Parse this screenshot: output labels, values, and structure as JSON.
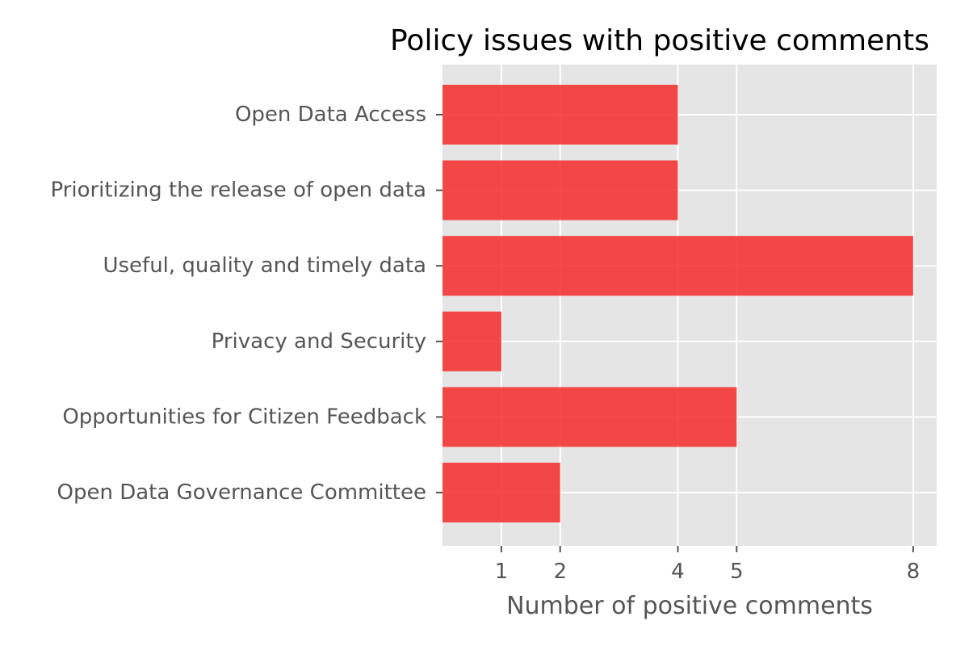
{
  "chart_data": {
    "type": "bar",
    "orientation": "horizontal",
    "title": "Policy issues with positive comments",
    "xlabel": "Number of positive comments",
    "ylabel": "",
    "categories": [
      "Open Data Access",
      "Prioritizing the release of open data",
      "Useful, quality and timely data",
      "Privacy and Security",
      "Opportunities for Citizen Feedback",
      "Open Data Governance Committee"
    ],
    "values": [
      4,
      4,
      8,
      1,
      5,
      2
    ],
    "xticks": [
      1,
      2,
      4,
      5,
      8
    ],
    "xlim": [
      0,
      8.4
    ],
    "grid": true,
    "legend": "none",
    "colors": {
      "bar": "#f62a2a",
      "plot_background": "#e5e5e5",
      "grid": "#ffffff",
      "text": "#555555"
    }
  }
}
